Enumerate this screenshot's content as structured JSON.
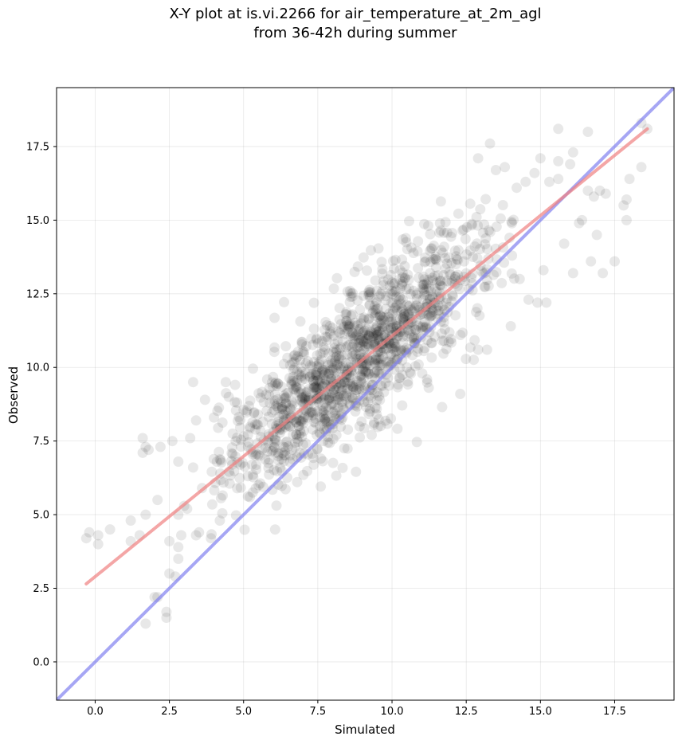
{
  "chart_data": {
    "type": "scatter",
    "title_line1": "X-Y plot at is.vi.2266 for air_temperature_at_2m_agl",
    "title_line2": "from 36-42h during summer",
    "xlabel": "Simulated",
    "ylabel": "Observed",
    "xlim": [
      -1.3,
      19.5
    ],
    "ylim": [
      -1.3,
      19.5
    ],
    "xticks": [
      0.0,
      2.5,
      5.0,
      7.5,
      10.0,
      12.5,
      15.0,
      17.5
    ],
    "yticks": [
      0.0,
      2.5,
      5.0,
      7.5,
      10.0,
      12.5,
      15.0,
      17.5
    ],
    "xtick_labels": [
      "0.0",
      "2.5",
      "5.0",
      "7.5",
      "10.0",
      "12.5",
      "15.0",
      "17.5"
    ],
    "ytick_labels": [
      "0.0",
      "2.5",
      "5.0",
      "7.5",
      "10.0",
      "12.5",
      "15.0",
      "17.5"
    ],
    "grid": true,
    "point_color": "#000000",
    "point_opacity": 0.09,
    "fit_line": {
      "color": "#f08080",
      "x": [
        -0.3,
        18.6
      ],
      "y": [
        2.65,
        18.1
      ]
    },
    "identity_line": {
      "color": "#8080f0",
      "x": [
        -1.3,
        19.5
      ],
      "y": [
        -1.3,
        19.5
      ]
    },
    "cluster": {
      "center": [
        8.6,
        10.1
      ],
      "x_sd": 2.4,
      "slope": 0.78,
      "residual_sd": 1.2,
      "n": 1400
    },
    "outliers": [
      [
        -0.3,
        4.2
      ],
      [
        -0.2,
        4.4
      ],
      [
        0.1,
        4.0
      ],
      [
        0.1,
        4.3
      ],
      [
        0.5,
        4.5
      ],
      [
        1.2,
        4.1
      ],
      [
        1.2,
        4.8
      ],
      [
        1.5,
        4.3
      ],
      [
        1.6,
        7.1
      ],
      [
        1.6,
        7.6
      ],
      [
        1.7,
        7.3
      ],
      [
        1.7,
        5.0
      ],
      [
        1.7,
        1.3
      ],
      [
        2.0,
        2.2
      ],
      [
        2.1,
        2.2
      ],
      [
        2.1,
        5.5
      ],
      [
        2.4,
        1.5
      ],
      [
        2.4,
        1.7
      ],
      [
        2.5,
        3.0
      ],
      [
        2.5,
        4.1
      ],
      [
        2.6,
        7.5
      ],
      [
        2.7,
        2.9
      ],
      [
        2.8,
        3.9
      ],
      [
        2.8,
        3.5
      ],
      [
        2.8,
        5.0
      ],
      [
        2.8,
        6.8
      ],
      [
        2.9,
        4.3
      ],
      [
        3.1,
        5.2
      ],
      [
        3.2,
        7.6
      ],
      [
        3.3,
        9.5
      ],
      [
        3.3,
        6.6
      ],
      [
        3.4,
        8.2
      ],
      [
        3.4,
        4.3
      ],
      [
        3.6,
        5.9
      ],
      [
        3.7,
        8.9
      ],
      [
        3.9,
        4.2
      ],
      [
        4.0,
        8.3
      ],
      [
        4.1,
        6.8
      ],
      [
        4.4,
        9.5
      ],
      [
        4.5,
        9.0
      ],
      [
        1.8,
        7.2
      ],
      [
        2.2,
        7.3
      ],
      [
        3.0,
        5.3
      ],
      [
        3.5,
        4.4
      ],
      [
        4.2,
        4.8
      ],
      [
        12.9,
        17.1
      ],
      [
        13.3,
        17.6
      ],
      [
        13.5,
        16.7
      ],
      [
        13.8,
        16.8
      ],
      [
        14.2,
        16.1
      ],
      [
        14.5,
        16.3
      ],
      [
        14.8,
        16.6
      ],
      [
        15.0,
        17.1
      ],
      [
        15.3,
        16.3
      ],
      [
        15.6,
        16.4
      ],
      [
        15.6,
        18.1
      ],
      [
        15.6,
        17.0
      ],
      [
        15.8,
        14.2
      ],
      [
        16.0,
        16.9
      ],
      [
        16.1,
        17.3
      ],
      [
        16.6,
        18.0
      ],
      [
        16.1,
        13.2
      ],
      [
        16.3,
        14.9
      ],
      [
        16.6,
        16.0
      ],
      [
        16.7,
        13.6
      ],
      [
        16.8,
        15.8
      ],
      [
        16.9,
        14.5
      ],
      [
        17.0,
        16.0
      ],
      [
        17.1,
        13.2
      ],
      [
        17.2,
        15.9
      ],
      [
        17.5,
        13.6
      ],
      [
        17.8,
        15.5
      ],
      [
        17.9,
        15.7
      ],
      [
        17.9,
        15.0
      ],
      [
        18.0,
        16.4
      ],
      [
        18.4,
        18.3
      ],
      [
        18.6,
        18.1
      ],
      [
        18.4,
        16.8
      ],
      [
        15.2,
        12.2
      ],
      [
        14.9,
        12.2
      ],
      [
        14.6,
        12.3
      ],
      [
        14.3,
        13.0
      ],
      [
        13.2,
        10.6
      ],
      [
        12.9,
        10.6
      ],
      [
        12.3,
        9.1
      ],
      [
        14.0,
        11.4
      ],
      [
        15.1,
        13.3
      ],
      [
        16.4,
        15.0
      ]
    ]
  }
}
